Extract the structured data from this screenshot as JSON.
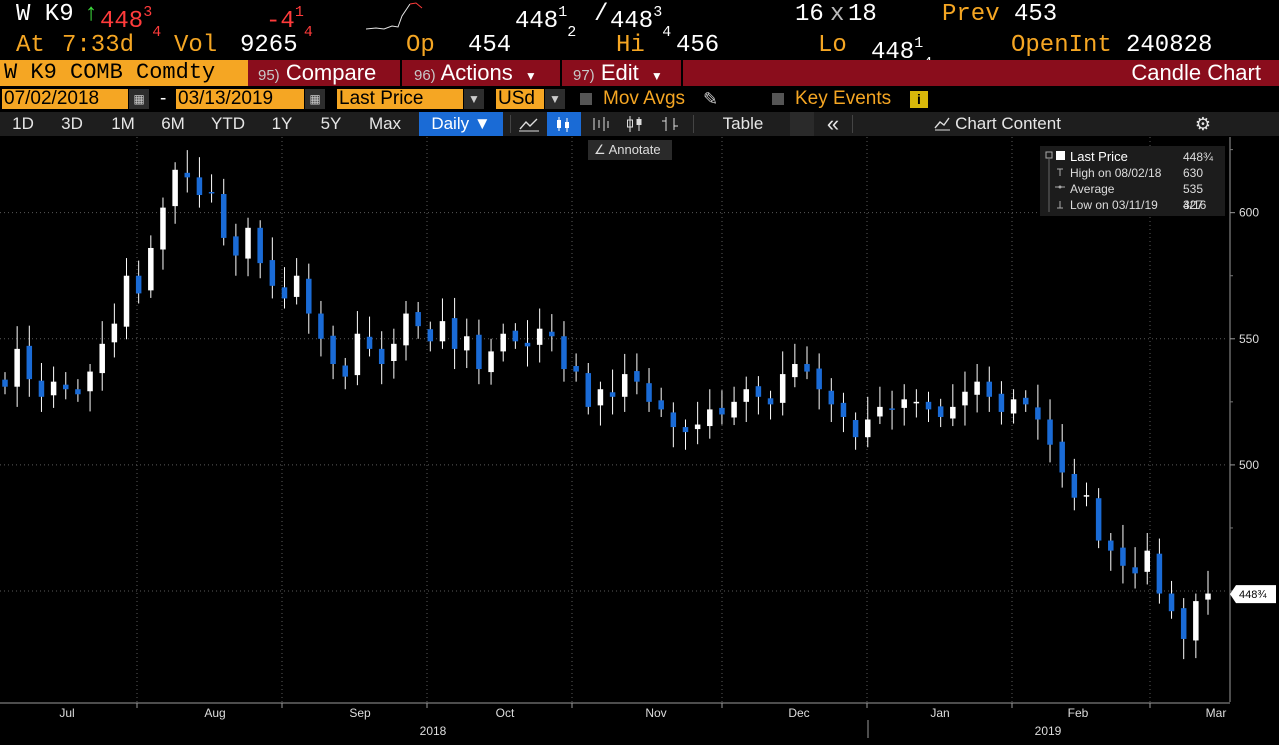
{
  "quote": {
    "ticker": "W K9",
    "arrow": "↑",
    "last_int": "448",
    "last_frac": "3",
    "last_den": "4",
    "change_int": "-4",
    "change_frac": "1",
    "change_den": "4",
    "bid_int": "448",
    "bid_frac": "1",
    "bid_den": "2",
    "bid_sep": "/",
    "ask_int": "448",
    "ask_frac": "3",
    "ask_den": "4",
    "size_bid": "16",
    "size_x": "x",
    "size_ask": "18",
    "prev_label": "Prev",
    "prev_value": "453",
    "at_label": "At",
    "at_value": "7:33d",
    "vol_label": "Vol",
    "vol_value": "9265",
    "op_label": "Op",
    "op_value": "454",
    "hi_label": "Hi",
    "hi_value": "456",
    "lo_label": "Lo",
    "lo_int": "448",
    "lo_frac": "1",
    "lo_den": "4",
    "oi_label": "OpenInt",
    "oi_value": "240828"
  },
  "title_bar": {
    "security": "W K9 COMB Comdty",
    "compare_num": "95)",
    "compare": "Compare",
    "actions_num": "96)",
    "actions": "Actions",
    "edit_num": "97)",
    "edit": "Edit",
    "chart_title": "Candle Chart"
  },
  "params": {
    "start_date": "07/02/2018",
    "dash": "-",
    "end_date": "03/13/2019",
    "field": "Last Price",
    "currency": "USd",
    "mov_avgs": "Mov Avgs",
    "key_events": "Key Events",
    "info": "i"
  },
  "toolbar": {
    "ranges": [
      "1D",
      "3D",
      "1M",
      "6M",
      "YTD",
      "1Y",
      "5Y",
      "Max"
    ],
    "period": "Daily ▼",
    "table": "Table",
    "collapse": "«",
    "chart_content": "Chart Content"
  },
  "annotate": "Annotate",
  "legend": {
    "last_price_label": "Last Price",
    "last_price_value": "448¾",
    "high_label": "High on 08/02/18",
    "high_value": "630",
    "average_label": "Average",
    "average_value": "535 3/16",
    "low_label": "Low on 03/11/19",
    "low_value": "427"
  },
  "colors": {
    "accent": "#f5a623",
    "title_bar": "#8a0d1c",
    "candle_down": "#1a6bd6",
    "candle_up": "#ffffff",
    "negative": "#ff3b3b",
    "up_arrow": "#3ddc3d"
  },
  "chart_data": {
    "type": "candlestick",
    "title": "",
    "xlabel": "",
    "ylabel": "",
    "ylim": [
      406,
      630
    ],
    "y_ticks": [
      600,
      550,
      500
    ],
    "x_tick_labels": [
      "Jul",
      "Aug",
      "Sep",
      "Oct",
      "Nov",
      "Dec",
      "Jan",
      "Feb",
      "Mar"
    ],
    "x_year_labels": [
      "2018",
      "2019"
    ],
    "last_price_label": "448¾",
    "last_price": 448.75,
    "grid": true,
    "legend_position": "top-right",
    "closes": [
      531,
      546,
      534,
      527,
      533,
      530,
      528,
      537,
      548,
      556,
      575,
      568,
      586,
      602,
      617,
      614,
      607,
      608,
      590,
      583,
      594,
      580,
      571,
      566,
      575,
      560,
      550,
      540,
      535,
      552,
      546,
      540,
      548,
      560,
      555,
      549,
      557,
      546,
      551,
      538,
      545,
      552,
      549,
      547,
      554,
      551,
      538,
      537,
      523,
      530,
      527,
      536,
      533,
      525,
      522,
      515,
      513,
      516,
      522,
      520,
      525,
      530,
      527,
      524,
      536,
      540,
      537,
      530,
      524,
      519,
      511,
      518,
      523,
      522,
      526,
      525,
      522,
      519,
      523,
      529,
      533,
      527,
      521,
      526,
      524,
      518,
      508,
      497,
      487,
      488,
      470,
      466,
      460,
      457,
      466,
      449,
      442,
      431,
      446,
      449
    ]
  }
}
